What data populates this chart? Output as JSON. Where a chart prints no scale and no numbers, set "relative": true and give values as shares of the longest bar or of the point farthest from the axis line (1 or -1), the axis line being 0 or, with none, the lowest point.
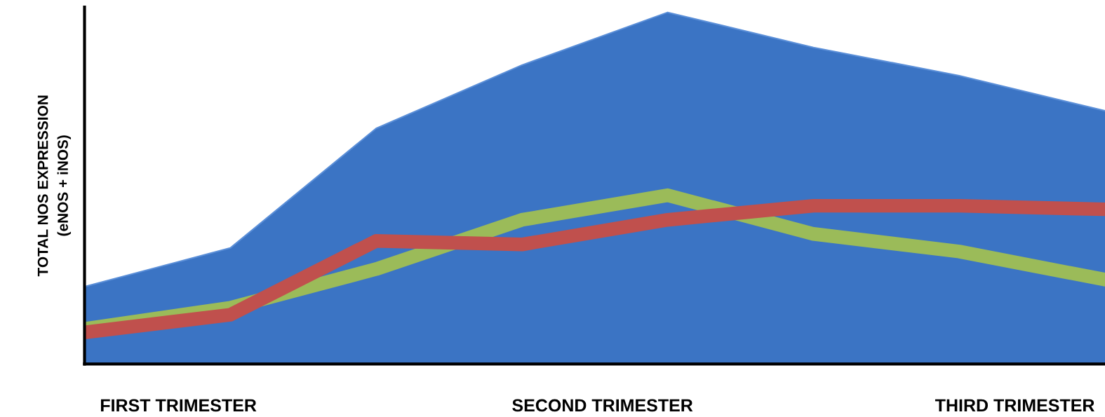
{
  "chart_data": {
    "type": "area",
    "relative": true,
    "ylabel": "TOTAL NOS EXPRESSION\n(eNOS + iNOS)",
    "categories": [
      null,
      null,
      null,
      null,
      null,
      null,
      null,
      null
    ],
    "series": [
      {
        "color": "#3b74c4",
        "values": [
          0.22,
          0.33,
          0.67,
          0.85,
          1.0,
          0.9,
          0.82,
          0.72
        ]
      },
      {
        "type": "line",
        "color": "#9bbb59",
        "values": [
          0.1,
          0.16,
          0.27,
          0.41,
          0.48,
          0.37,
          0.32,
          0.24
        ]
      },
      {
        "type": "line",
        "color": "#c0504d",
        "values": [
          0.09,
          0.14,
          0.35,
          0.34,
          0.41,
          0.45,
          0.45,
          0.44
        ]
      }
    ],
    "annotations": [
      "FIRST TRIMESTER",
      "SECOND TRIMESTER",
      "THIRD TRIMESTER"
    ],
    "grid": false,
    "legend": false
  }
}
